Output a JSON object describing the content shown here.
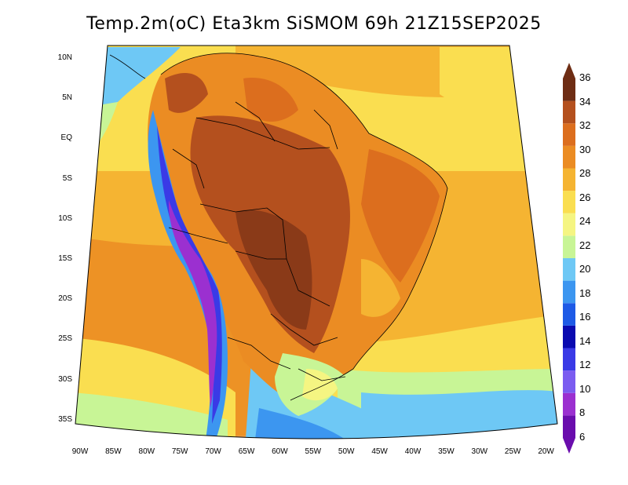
{
  "title": "Temp.2m(oC) Eta3km SiSMOM 69h 21Z15SEP2025",
  "lat_labels": [
    "10N",
    "5N",
    "EQ",
    "5S",
    "10S",
    "15S",
    "20S",
    "25S",
    "30S",
    "35S"
  ],
  "lon_labels": [
    "90W",
    "85W",
    "80W",
    "75W",
    "70W",
    "65W",
    "60W",
    "55W",
    "50W",
    "45W",
    "40W",
    "35W",
    "30W",
    "25W",
    "20W"
  ],
  "colorbar": {
    "levels": [
      "6",
      "8",
      "10",
      "12",
      "14",
      "16",
      "18",
      "20",
      "22",
      "24",
      "26",
      "28",
      "30",
      "32",
      "34",
      "36"
    ],
    "colors": [
      "#6a0dad",
      "#9b30d0",
      "#7b5cf0",
      "#3a3ae6",
      "#0a0ab0",
      "#1e5ae6",
      "#3c96f0",
      "#6ec8f5",
      "#c8f596",
      "#f5f582",
      "#fade50",
      "#f5b432",
      "#eb8c23",
      "#dc6e1e",
      "#b4501e",
      "#6e2d14"
    ]
  },
  "colors": {
    "ocean_north": "#f5b432",
    "ocean_south": "#6ec8f5",
    "hot_core": "#b4501e",
    "andes": "#3a3ae6"
  }
}
